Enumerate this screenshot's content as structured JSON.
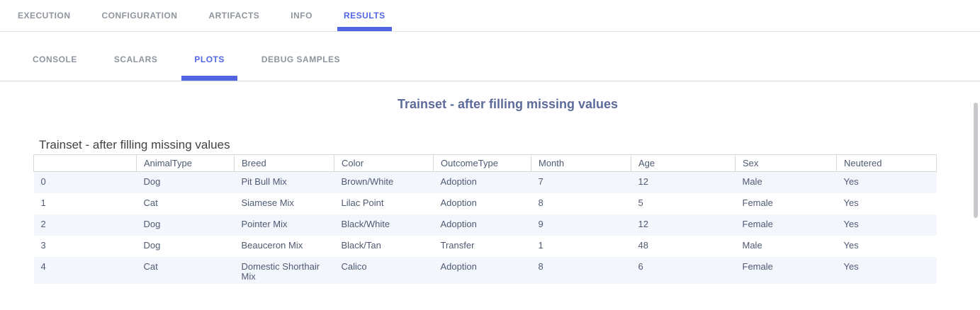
{
  "colors": {
    "accent": "#5266e4",
    "nav_inactive_text": "#8f949e",
    "separator": "#dcdcde",
    "plot_title_text": "#5d6b9b",
    "caption_text": "#3f4245",
    "table_text": "#4f5a73",
    "row_stripe": "#f3f6fc",
    "header_border": "#d9d9dc",
    "scrollbar_thumb": "#c7c9cd"
  },
  "main_nav": {
    "tabs": [
      {
        "label": "EXECUTION",
        "active": false
      },
      {
        "label": "CONFIGURATION",
        "active": false
      },
      {
        "label": "ARTIFACTS",
        "active": false
      },
      {
        "label": "INFO",
        "active": false
      },
      {
        "label": "RESULTS",
        "active": true
      }
    ]
  },
  "sub_nav": {
    "tabs": [
      {
        "label": "CONSOLE",
        "active": false
      },
      {
        "label": "SCALARS",
        "active": false
      },
      {
        "label": "PLOTS",
        "active": true
      },
      {
        "label": "DEBUG SAMPLES",
        "active": false
      }
    ]
  },
  "plot": {
    "title": "Trainset - after filling missing values",
    "table": {
      "caption": "Trainset - after filling missing values",
      "columns": [
        "",
        "AnimalType",
        "Breed",
        "Color",
        "OutcomeType",
        "Month",
        "Age",
        "Sex",
        "Neutered"
      ],
      "rows": [
        [
          "0",
          "Dog",
          "Pit Bull Mix",
          "Brown/White",
          "Adoption",
          "7",
          "12",
          "Male",
          "Yes"
        ],
        [
          "1",
          "Cat",
          "Siamese Mix",
          "Lilac Point",
          "Adoption",
          "8",
          "5",
          "Female",
          "Yes"
        ],
        [
          "2",
          "Dog",
          "Pointer Mix",
          "Black/White",
          "Adoption",
          "9",
          "12",
          "Female",
          "Yes"
        ],
        [
          "3",
          "Dog",
          "Beauceron Mix",
          "Black/Tan",
          "Transfer",
          "1",
          "48",
          "Male",
          "Yes"
        ],
        [
          "4",
          "Cat",
          "Domestic Shorthair Mix",
          "Calico",
          "Adoption",
          "8",
          "6",
          "Female",
          "Yes"
        ]
      ]
    }
  },
  "chart_data": {
    "type": "table",
    "title": "Trainset - after filling missing values",
    "columns": [
      "",
      "AnimalType",
      "Breed",
      "Color",
      "OutcomeType",
      "Month",
      "Age",
      "Sex",
      "Neutered"
    ],
    "rows": [
      [
        "0",
        "Dog",
        "Pit Bull Mix",
        "Brown/White",
        "Adoption",
        "7",
        "12",
        "Male",
        "Yes"
      ],
      [
        "1",
        "Cat",
        "Siamese Mix",
        "Lilac Point",
        "Adoption",
        "8",
        "5",
        "Female",
        "Yes"
      ],
      [
        "2",
        "Dog",
        "Pointer Mix",
        "Black/White",
        "Adoption",
        "9",
        "12",
        "Female",
        "Yes"
      ],
      [
        "3",
        "Dog",
        "Beauceron Mix",
        "Black/Tan",
        "Transfer",
        "1",
        "48",
        "Male",
        "Yes"
      ],
      [
        "4",
        "Cat",
        "Domestic Shorthair Mix",
        "Calico",
        "Adoption",
        "8",
        "6",
        "Female",
        "Yes"
      ]
    ]
  }
}
